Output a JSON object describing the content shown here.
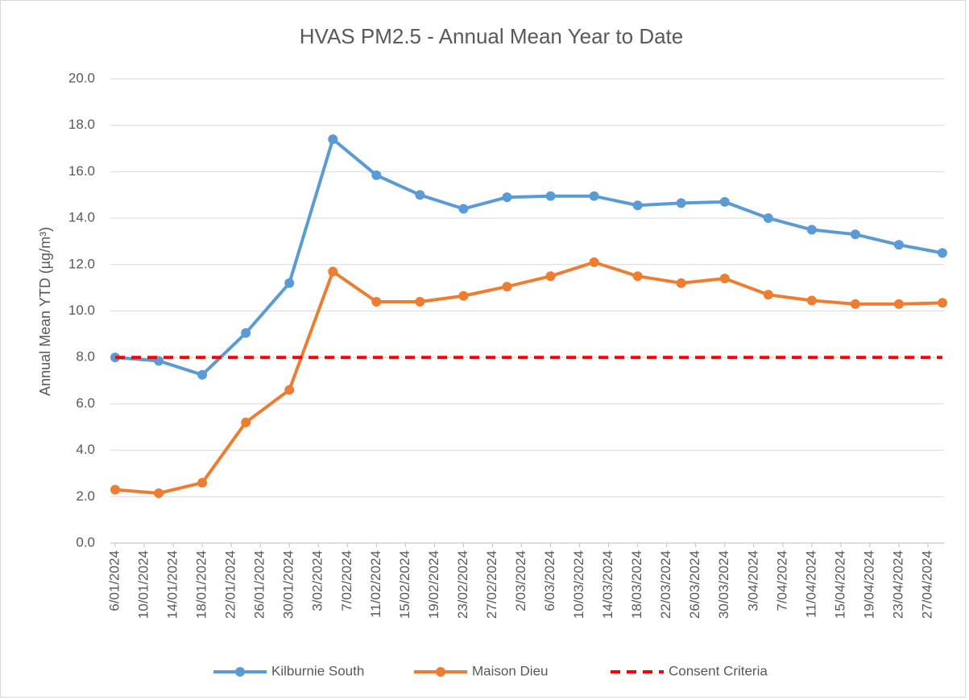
{
  "chart_data": {
    "type": "line",
    "title": "HVAS PM2.5 - Annual Mean Year to Date",
    "y_label": "Annual Mean YTD (µg/m³)",
    "x": [
      "2024-01-06",
      "2024-01-12",
      "2024-01-18",
      "2024-01-24",
      "2024-01-30",
      "2024-02-05",
      "2024-02-11",
      "2024-02-17",
      "2024-02-23",
      "2024-02-29",
      "2024-03-06",
      "2024-03-12",
      "2024-03-18",
      "2024-03-24",
      "2024-03-30",
      "2024-04-05",
      "2024-04-11",
      "2024-04-17",
      "2024-04-23",
      "2024-04-29"
    ],
    "series": [
      {
        "name": "Kilburnie South",
        "color": "#5b9bd5",
        "marker": true,
        "dashed": false,
        "values": [
          8.0,
          7.85,
          7.25,
          9.05,
          11.2,
          17.4,
          15.85,
          15.0,
          14.4,
          14.9,
          14.95,
          14.95,
          14.55,
          14.65,
          14.7,
          14.0,
          13.5,
          13.3,
          12.85,
          12.5
        ]
      },
      {
        "name": "Maison Dieu",
        "color": "#ed7d31",
        "marker": true,
        "dashed": false,
        "values": [
          2.3,
          2.15,
          2.6,
          5.2,
          6.6,
          11.7,
          10.4,
          10.4,
          10.65,
          11.05,
          11.5,
          12.1,
          11.5,
          11.2,
          11.4,
          10.7,
          10.45,
          10.3,
          10.3,
          10.35
        ]
      },
      {
        "name": "Consent Criteria",
        "color": "#ff0000",
        "marker": false,
        "dashed": true,
        "values": [
          8,
          8,
          8,
          8,
          8,
          8,
          8,
          8,
          8,
          8,
          8,
          8,
          8,
          8,
          8,
          8,
          8,
          8,
          8,
          8
        ]
      }
    ],
    "xlim": [
      "2024-01-06",
      "2024-04-29"
    ],
    "xticks": [
      {
        "value": "2024-01-06",
        "label": "6/01/2024"
      },
      {
        "value": "2024-01-10",
        "label": "10/01/2024"
      },
      {
        "value": "2024-01-14",
        "label": "14/01/2024"
      },
      {
        "value": "2024-01-18",
        "label": "18/01/2024"
      },
      {
        "value": "2024-01-22",
        "label": "22/01/2024"
      },
      {
        "value": "2024-01-26",
        "label": "26/01/2024"
      },
      {
        "value": "2024-01-30",
        "label": "30/01/2024"
      },
      {
        "value": "2024-02-03",
        "label": "3/02/2024"
      },
      {
        "value": "2024-02-07",
        "label": "7/02/2024"
      },
      {
        "value": "2024-02-11",
        "label": "11/02/2024"
      },
      {
        "value": "2024-02-15",
        "label": "15/02/2024"
      },
      {
        "value": "2024-02-19",
        "label": "19/02/2024"
      },
      {
        "value": "2024-02-23",
        "label": "23/02/2024"
      },
      {
        "value": "2024-02-27",
        "label": "27/02/2024"
      },
      {
        "value": "2024-03-02",
        "label": "2/03/2024"
      },
      {
        "value": "2024-03-06",
        "label": "6/03/2024"
      },
      {
        "value": "2024-03-10",
        "label": "10/03/2024"
      },
      {
        "value": "2024-03-14",
        "label": "14/03/2024"
      },
      {
        "value": "2024-03-18",
        "label": "18/03/2024"
      },
      {
        "value": "2024-03-22",
        "label": "22/03/2024"
      },
      {
        "value": "2024-03-26",
        "label": "26/03/2024"
      },
      {
        "value": "2024-03-30",
        "label": "30/03/2024"
      },
      {
        "value": "2024-04-03",
        "label": "3/04/2024"
      },
      {
        "value": "2024-04-07",
        "label": "7/04/2024"
      },
      {
        "value": "2024-04-11",
        "label": "11/04/2024"
      },
      {
        "value": "2024-04-15",
        "label": "15/04/2024"
      },
      {
        "value": "2024-04-19",
        "label": "19/04/2024"
      },
      {
        "value": "2024-04-23",
        "label": "23/04/2024"
      },
      {
        "value": "2024-04-27",
        "label": "27/04/2024"
      }
    ],
    "ylim": [
      0,
      20
    ],
    "yticks": [
      {
        "value": 0,
        "label": "0.0"
      },
      {
        "value": 2,
        "label": "2.0"
      },
      {
        "value": 4,
        "label": "4.0"
      },
      {
        "value": 6,
        "label": "6.0"
      },
      {
        "value": 8,
        "label": "8.0"
      },
      {
        "value": 10,
        "label": "10.0"
      },
      {
        "value": 12,
        "label": "12.0"
      },
      {
        "value": 14,
        "label": "14.0"
      },
      {
        "value": 16,
        "label": "16.0"
      },
      {
        "value": 18,
        "label": "18.0"
      },
      {
        "value": 20,
        "label": "20.0"
      }
    ],
    "grid": true,
    "legend": "bottom"
  }
}
